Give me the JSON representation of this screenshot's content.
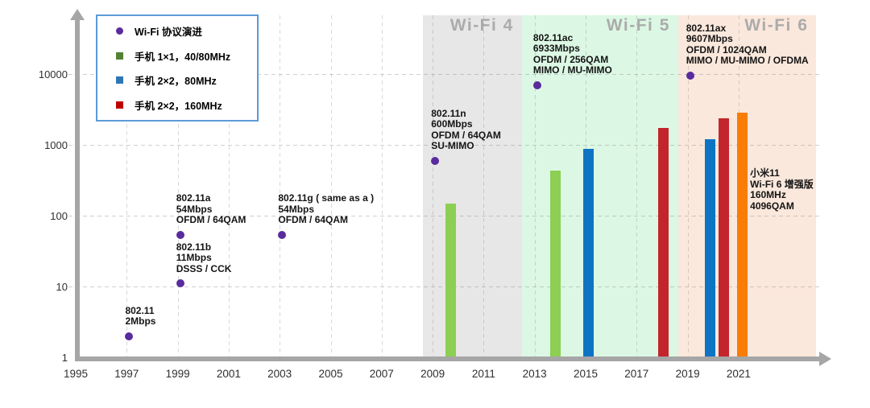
{
  "legend": {
    "items": [
      {
        "label": "Wi-Fi 协议演进",
        "marker": "dot",
        "color": "#5a2b9d"
      },
      {
        "label": "手机 1×1，40/80MHz",
        "marker": "square",
        "color": "#538135"
      },
      {
        "label": "手机 2×2，80MHz",
        "marker": "square",
        "color": "#2e75b6"
      },
      {
        "label": "手机 2×2，160MHz",
        "marker": "square",
        "color": "#c00000"
      }
    ]
  },
  "chart_data": {
    "type": "scatter+bar",
    "note": "Wi-Fi protocol evolution: purple points = protocol peak rates, bars = phone rates; y axis log scale in Mbps",
    "x_axis": {
      "ticks": [
        1995,
        1997,
        1999,
        2001,
        2003,
        2005,
        2007,
        2009,
        2011,
        2013,
        2015,
        2017,
        2019,
        2021
      ],
      "range": [
        1995,
        2024.2
      ]
    },
    "y_axis": {
      "scale": "log",
      "unit": "Mbps",
      "ticks": [
        1,
        10,
        100,
        1000,
        10000
      ],
      "range": [
        1,
        60000
      ]
    },
    "grid": "dashed, every 2 years vertical, every decade horizontal",
    "bands": [
      {
        "label": "Wi-Fi 4",
        "from": 2008.62,
        "to": 2012.5,
        "color": "#e8e7e7"
      },
      {
        "label": "Wi-Fi 5",
        "from": 2012.5,
        "to": 2018.63,
        "color": "#dcf8e4"
      },
      {
        "label": "Wi-Fi 6",
        "from": 2018.63,
        "to": 2024.05,
        "color": "#fbe8dc"
      }
    ],
    "band_label_color": "#ababab",
    "point_color": "#5a2b9d",
    "protocols": [
      {
        "name": "802.11",
        "year": 1997.1,
        "mbps": 2,
        "lines": [
          "802.11",
          "2Mbps"
        ]
      },
      {
        "name": "802.11b",
        "year": 1999.1,
        "mbps": 11,
        "lines": [
          "802.11b",
          "11Mbps",
          "DSSS / CCK"
        ]
      },
      {
        "name": "802.11a",
        "year": 1999.1,
        "mbps": 54,
        "lines": [
          "802.11a",
          "54Mbps",
          "OFDM / 64QAM"
        ]
      },
      {
        "name": "802.11g",
        "year": 2003.1,
        "mbps": 54,
        "lines": [
          "802.11g ( same as a )",
          "54Mbps",
          "OFDM / 64QAM"
        ]
      },
      {
        "name": "802.11n",
        "year": 2009.1,
        "mbps": 600,
        "lines": [
          "802.11n",
          "600Mbps",
          "OFDM / 64QAM",
          "SU-MIMO"
        ]
      },
      {
        "name": "802.11ac",
        "year": 2013.1,
        "mbps": 6933,
        "lines": [
          "802.11ac",
          "6933Mbps",
          "OFDM / 256QAM",
          "MIMO / MU-MIMO"
        ]
      },
      {
        "name": "802.11ax",
        "year": 2019.1,
        "mbps": 9607,
        "lines": [
          "802.11ax",
          "9607Mbps",
          "OFDM / 1024QAM",
          "MIMO / MU-MIMO / OFDMA"
        ]
      }
    ],
    "series_colors": {
      "green": "#8ccf52",
      "blue": "#0d74c4",
      "red": "#c2262c",
      "orange": "#f97c05"
    },
    "bars": [
      {
        "series": "green",
        "year": 2009.72,
        "mbps": 150
      },
      {
        "series": "green",
        "year": 2013.8,
        "mbps": 433
      },
      {
        "series": "blue",
        "year": 2015.12,
        "mbps": 866
      },
      {
        "series": "red",
        "year": 2018.05,
        "mbps": 1733
      },
      {
        "series": "blue",
        "year": 2019.88,
        "mbps": 1201
      },
      {
        "series": "red",
        "year": 2020.42,
        "mbps": 2402
      },
      {
        "series": "orange",
        "year": 2021.16,
        "mbps": 2882
      }
    ],
    "annotation": {
      "year": 2021.45,
      "mbps": 465,
      "lines": [
        "小米11",
        "Wi-Fi 6 增强版",
        "160MHz",
        "4096QAM"
      ]
    }
  }
}
